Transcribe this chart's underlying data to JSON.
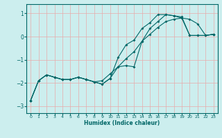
{
  "xlabel": "Humidex (Indice chaleur)",
  "ylabel": "",
  "bg_color": "#cceeee",
  "line_color": "#006666",
  "grid_color": "#e8aaaa",
  "xlim": [
    -0.5,
    23.5
  ],
  "ylim": [
    -3.3,
    1.4
  ],
  "xticks": [
    0,
    1,
    2,
    3,
    4,
    5,
    6,
    7,
    8,
    9,
    10,
    11,
    12,
    13,
    14,
    15,
    16,
    17,
    18,
    19,
    20,
    21,
    22,
    23
  ],
  "yticks": [
    -3,
    -2,
    -1,
    0,
    1
  ],
  "line1_x": [
    0,
    1,
    2,
    3,
    4,
    5,
    6,
    7,
    8,
    9,
    10,
    11,
    12,
    13,
    14,
    15,
    16,
    17,
    18,
    19,
    20,
    21,
    22,
    23
  ],
  "line1_y": [
    -2.75,
    -1.9,
    -1.65,
    -1.75,
    -1.85,
    -1.85,
    -1.75,
    -1.85,
    -1.95,
    -1.9,
    -1.6,
    -1.3,
    -0.95,
    -0.65,
    -0.2,
    0.1,
    0.4,
    0.65,
    0.75,
    0.8,
    0.75,
    0.55,
    0.05,
    0.1
  ],
  "line2_x": [
    0,
    1,
    2,
    3,
    4,
    5,
    6,
    7,
    8,
    9,
    10,
    11,
    12,
    13,
    14,
    15,
    16,
    17,
    18,
    19,
    20,
    21,
    22,
    23
  ],
  "line2_y": [
    -2.75,
    -1.9,
    -1.65,
    -1.75,
    -1.85,
    -1.85,
    -1.75,
    -1.85,
    -1.95,
    -2.05,
    -1.8,
    -1.3,
    -1.25,
    -1.3,
    -0.2,
    0.35,
    0.65,
    0.95,
    0.9,
    0.85,
    0.05,
    0.05,
    0.05,
    0.1
  ],
  "line3_x": [
    0,
    1,
    2,
    3,
    4,
    5,
    6,
    7,
    8,
    9,
    10,
    11,
    12,
    13,
    14,
    15,
    16,
    17,
    18,
    19,
    20,
    21,
    22,
    23
  ],
  "line3_y": [
    -2.75,
    -1.9,
    -1.65,
    -1.75,
    -1.85,
    -1.85,
    -1.75,
    -1.85,
    -1.95,
    -2.05,
    -1.8,
    -0.9,
    -0.35,
    -0.15,
    0.35,
    0.6,
    0.95,
    0.95,
    0.9,
    0.8,
    0.05,
    0.05,
    0.05,
    0.1
  ]
}
